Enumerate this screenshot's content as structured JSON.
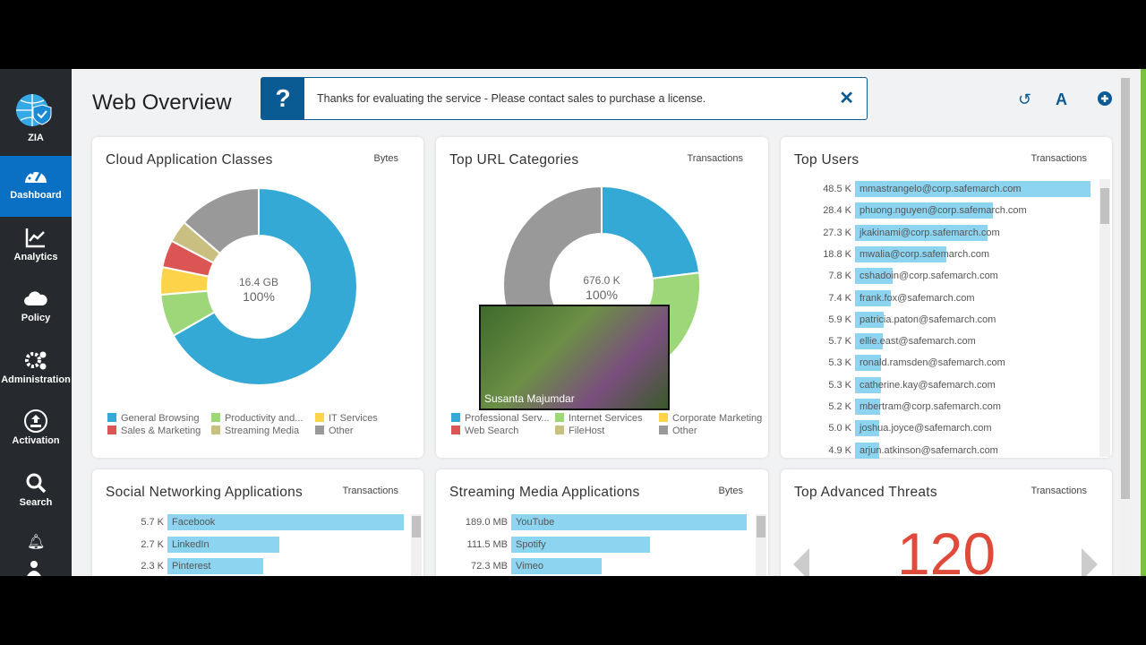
{
  "sidebar": {
    "logo": "ZIA",
    "items": [
      {
        "label": "Dashboard",
        "icon": "dashboard-icon",
        "active": true
      },
      {
        "label": "Analytics",
        "icon": "analytics-icon"
      },
      {
        "label": "Policy",
        "icon": "cloud-icon"
      },
      {
        "label": "Administration",
        "icon": "gears-icon"
      },
      {
        "label": "Activation",
        "icon": "upload-icon"
      },
      {
        "label": "Search",
        "icon": "search-icon"
      }
    ],
    "extra_icons": [
      "bell-icon",
      "user-icon"
    ]
  },
  "header": {
    "title": "Web Overview",
    "banner": "Thanks for evaluating the service - Please contact sales to purchase a license.",
    "banner_icon": "?",
    "close": "✕",
    "tools": [
      "undo-icon",
      "add-font-icon",
      "add-widget-icon"
    ]
  },
  "colors": {
    "accent": "#0a70c4",
    "bar": "#8dd4f0",
    "threat": "#e04a3a"
  },
  "chart_data": [
    {
      "type": "pie",
      "title": "Cloud Application Classes",
      "unit": "Bytes",
      "center_value": "16.4 GB",
      "center_pct": "100%",
      "categories": [
        "General Browsing",
        "Productivity and...",
        "IT Services",
        "Sales & Marketing",
        "Streaming Media",
        "Other"
      ],
      "values": [
        66.7,
        7,
        4.5,
        4.5,
        3.6,
        13.7
      ],
      "colors": [
        "#35a9d6",
        "#9ed67a",
        "#fdd34a",
        "#dc5555",
        "#c9bf80",
        "#999999"
      ],
      "legend_order": [
        "General Browsing",
        "Productivity and...",
        "IT Services",
        "Sales & Marketing",
        "Streaming Media",
        "Other"
      ]
    },
    {
      "type": "pie",
      "title": "Top URL Categories",
      "unit": "Transactions",
      "center_value": "676.0 K",
      "center_pct": "100%",
      "categories": [
        "Professional Serv...",
        "Internet Services",
        "Corporate Marketing",
        "Web Search",
        "FileHost",
        "Other"
      ],
      "values": [
        23,
        18,
        8,
        6,
        5,
        40
      ],
      "colors": [
        "#35a9d6",
        "#9ed67a",
        "#fdd34a",
        "#dc5555",
        "#c9bf80",
        "#999999"
      ]
    },
    {
      "type": "bar",
      "title": "Top Users",
      "unit": "Transactions",
      "categories": [
        "mmastrangelo@corp.safemarch.com",
        "phuong.nguyen@corp.safemarch.com",
        "jkakinami@corp.safemarch.com",
        "mwalia@corp.safemarch.com",
        "cshadoin@corp.safemarch.com",
        "frank.fox@safemarch.com",
        "patricia.paton@safemarch.com",
        "ellie.east@safemarch.com",
        "ronald.ramsden@safemarch.com",
        "catherine.kay@safemarch.com",
        "mbertram@corp.safemarch.com",
        "joshua.joyce@safemarch.com",
        "arjun.atkinson@safemarch.com"
      ],
      "values": [
        48.5,
        28.4,
        27.3,
        18.8,
        7.8,
        7.4,
        5.9,
        5.7,
        5.3,
        5.3,
        5.2,
        5.0,
        4.9
      ],
      "labels": [
        "48.5 K",
        "28.4 K",
        "27.3 K",
        "18.8 K",
        "7.8 K",
        "7.4 K",
        "5.9 K",
        "5.7 K",
        "5.3 K",
        "5.3 K",
        "5.2 K",
        "5.0 K",
        "4.9 K"
      ]
    },
    {
      "type": "bar",
      "title": "Social Networking Applications",
      "unit": "Transactions",
      "categories": [
        "Facebook",
        "LinkedIn",
        "Pinterest"
      ],
      "values": [
        5.7,
        2.7,
        2.3
      ],
      "labels": [
        "5.7 K",
        "2.7 K",
        "2.3 K"
      ]
    },
    {
      "type": "bar",
      "title": "Streaming Media Applications",
      "unit": "Bytes",
      "categories": [
        "YouTube",
        "Spotify",
        "Vimeo"
      ],
      "values": [
        189.0,
        111.5,
        72.3
      ],
      "labels": [
        "189.0 MB",
        "111.5 MB",
        "72.3 MB"
      ]
    }
  ],
  "threats": {
    "title": "Top Advanced Threats",
    "unit": "Transactions",
    "value": "120"
  },
  "video": {
    "name": "Susanta Majumdar"
  }
}
